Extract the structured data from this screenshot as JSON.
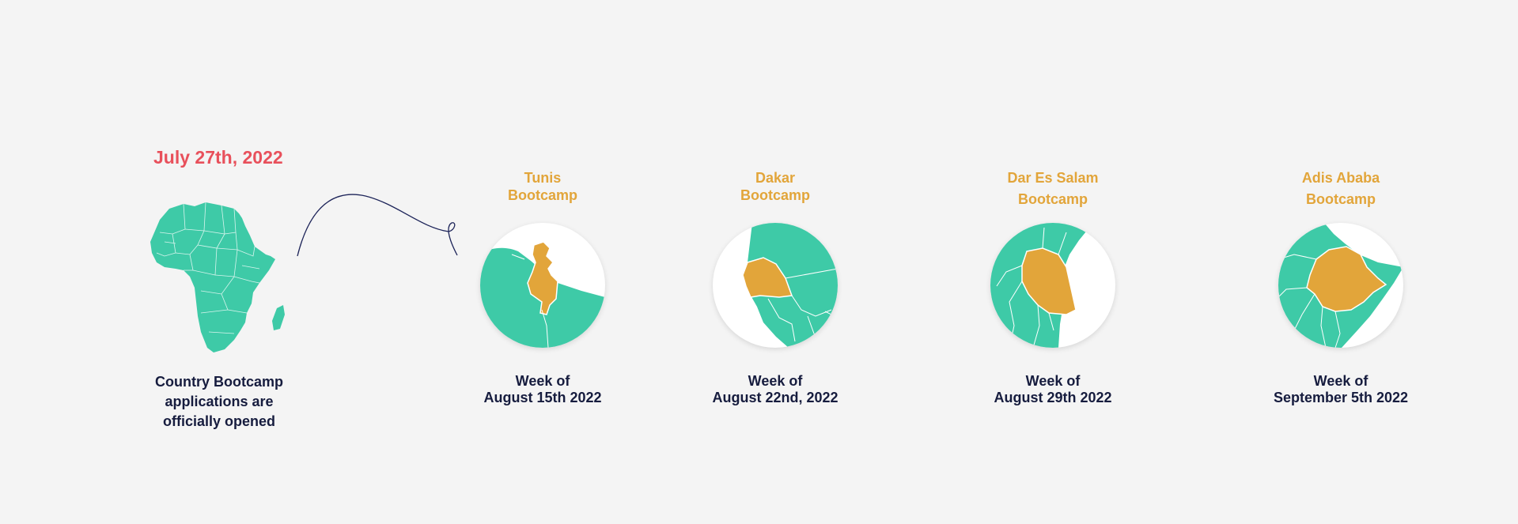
{
  "headline": {
    "date": "July 27th, 2022",
    "subtitle_lines": [
      "Country Bootcamp",
      "applications are",
      "officially opened"
    ]
  },
  "colors": {
    "date": "#e8505b",
    "map_green": "#3ecaa7",
    "highlight": "#e2a53a",
    "text_dark": "#161c3e"
  },
  "icons": {
    "overview": "africa-map-icon",
    "stops": [
      "tunisia-map-icon",
      "senegal-map-icon",
      "tanzania-map-icon",
      "ethiopia-map-icon"
    ]
  },
  "bootcamps": [
    {
      "city": "Tunis",
      "label": "Bootcamp",
      "week_label": "Week of",
      "week_date": "August 15th 2022"
    },
    {
      "city": "Dakar",
      "label": "Bootcamp",
      "week_label": "Week of",
      "week_date": "August 22nd, 2022"
    },
    {
      "city": "Dar Es Salam",
      "label": "Bootcamp",
      "week_label": "Week of",
      "week_date": "August 29th 2022"
    },
    {
      "city": "Adis Ababa",
      "label": "Bootcamp",
      "week_label": "Week of",
      "week_date": "September 5th 2022"
    }
  ]
}
